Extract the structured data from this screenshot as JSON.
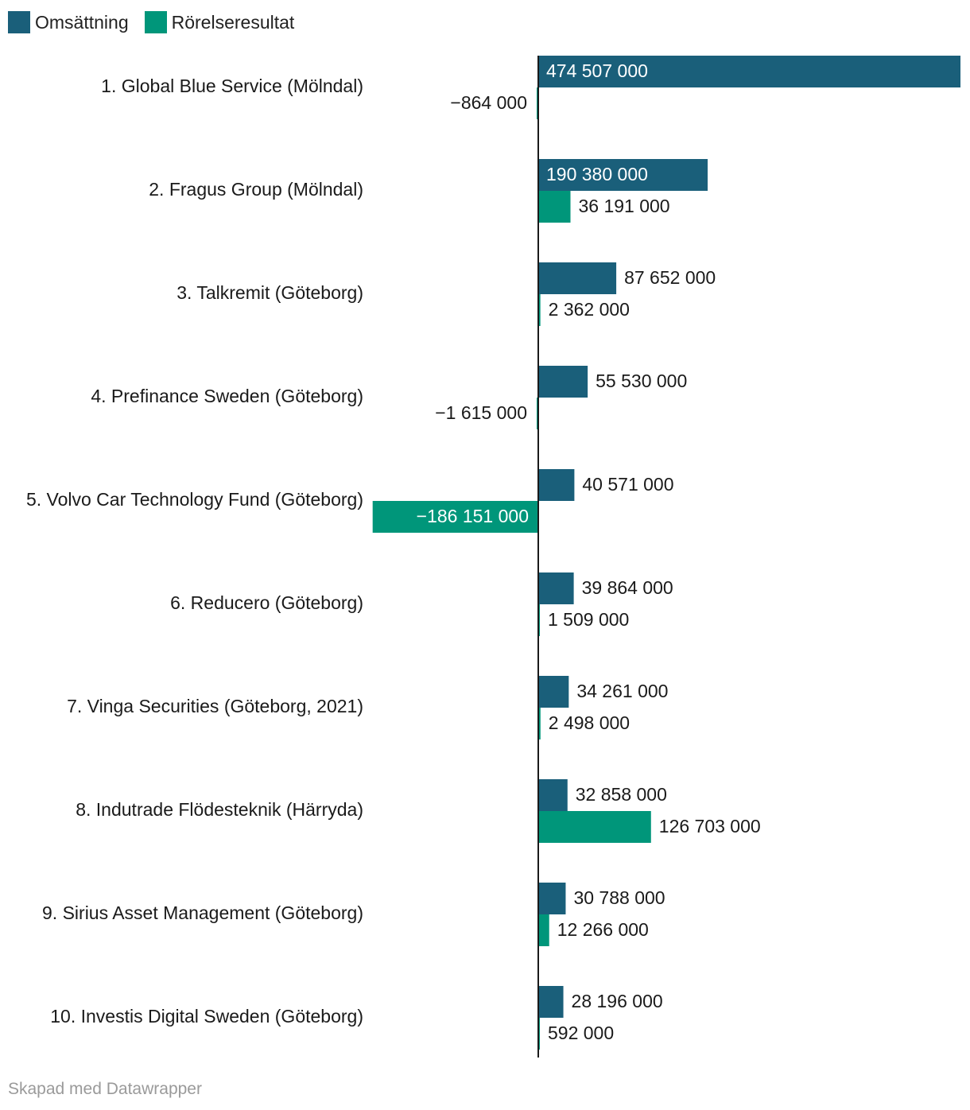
{
  "chart_data": {
    "type": "bar",
    "orientation": "horizontal",
    "title": "",
    "categories": [
      "1. Global Blue Service (Mölndal)",
      "2. Fragus Group (Mölndal)",
      "3. Talkremit (Göteborg)",
      "4. Prefinance Sweden (Göteborg)",
      "5. Volvo Car Technology Fund (Göteborg)",
      "6. Reducero (Göteborg)",
      "7. Vinga Securities (Göteborg, 2021)",
      "8. Indutrade Flödesteknik (Härryda)",
      "9. Sirius Asset Management (Göteborg)",
      "10. Investis Digital Sweden (Göteborg)"
    ],
    "series": [
      {
        "name": "Omsättning",
        "color": "#1a5f7a",
        "values": [
          474507000,
          190380000,
          87652000,
          55530000,
          40571000,
          39864000,
          34261000,
          32858000,
          30788000,
          28196000
        ],
        "labels": [
          "474 507 000",
          "190 380 000",
          "87 652 000",
          "55 530 000",
          "40 571 000",
          "39 864 000",
          "34 261 000",
          "32 858 000",
          "30 788 000",
          "28 196 000"
        ]
      },
      {
        "name": "Rörelseresultat",
        "color": "#00967a",
        "values": [
          -864000,
          36191000,
          2362000,
          -1615000,
          -186151000,
          1509000,
          2498000,
          126703000,
          12266000,
          592000
        ],
        "labels": [
          "−864 000",
          "36 191 000",
          "2 362 000",
          "−1 615 000",
          "−186 151 000",
          "1 509 000",
          "2 498 000",
          "126 703 000",
          "12 266 000",
          "592 000"
        ]
      }
    ],
    "xlim": [
      -186151000,
      474507000
    ],
    "legend_position": "top-left"
  },
  "footer": {
    "credit": "Skapad med Datawrapper"
  }
}
